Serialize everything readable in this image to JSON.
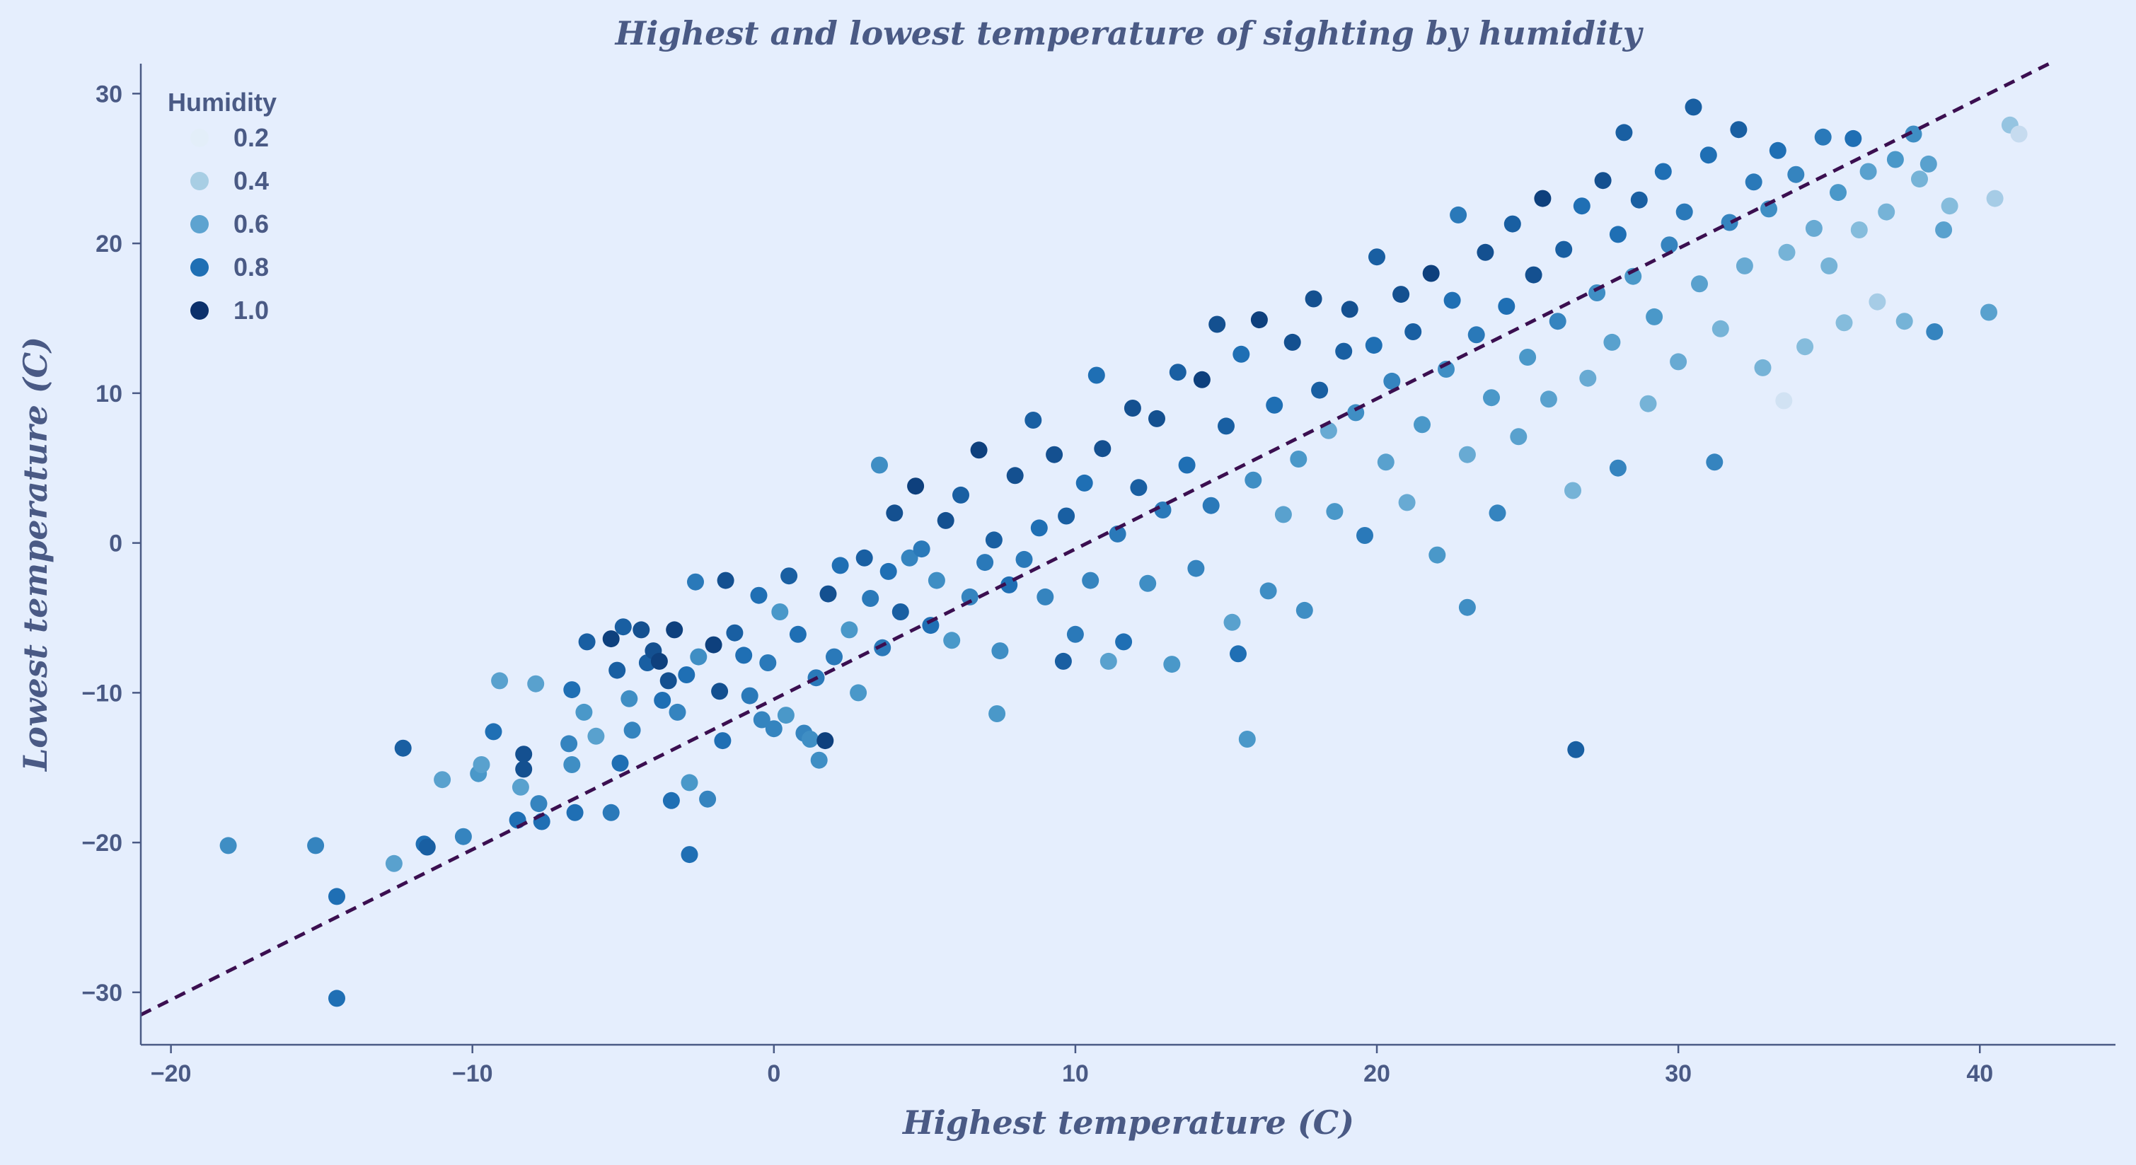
{
  "chart_data": {
    "type": "scatter",
    "title": "Highest and lowest temperature of sighting by humidity",
    "xlabel": "Highest temperature (C)",
    "ylabel": "Lowest temperature (C)",
    "xlim": [
      -21,
      44.5
    ],
    "ylim": [
      -33.5,
      32
    ],
    "xticks": [
      -20,
      -10,
      0,
      10,
      20,
      30,
      40
    ],
    "yticks": [
      -30,
      -20,
      -10,
      0,
      10,
      20,
      30
    ],
    "xtick_labels": [
      "−20",
      "−10",
      "0",
      "10",
      "20",
      "30",
      "40"
    ],
    "ytick_labels": [
      "−30",
      "−20",
      "−10",
      "0",
      "10",
      "20",
      "30"
    ],
    "grid": false,
    "legend": {
      "title": "Humidity",
      "placement": "top-left",
      "entries": [
        {
          "label": "0.2",
          "color": "#e3eef9"
        },
        {
          "label": "0.4",
          "color": "#a8cee4"
        },
        {
          "label": "0.6",
          "color": "#5da3d0"
        },
        {
          "label": "0.8",
          "color": "#1f6fb4"
        },
        {
          "label": "1.0",
          "color": "#0b306b"
        }
      ]
    },
    "reference_line": {
      "style": "dashed",
      "color": "#3b0f50",
      "points": [
        [
          -21,
          -31.5
        ],
        [
          42.3,
          32
        ]
      ]
    },
    "colormap": [
      "#f1f7fd",
      "#c6dbef",
      "#85bcdc",
      "#4a98c9",
      "#1f6fb4",
      "#08306b"
    ],
    "series": [
      {
        "points": [
          [
            -18.1,
            -20.2,
            0.65
          ],
          [
            -15.2,
            -20.2,
            0.7
          ],
          [
            -14.5,
            -23.6,
            0.8
          ],
          [
            -14.5,
            -30.4,
            0.8
          ],
          [
            -12.6,
            -21.4,
            0.55
          ],
          [
            -12.3,
            -13.7,
            0.85
          ],
          [
            -11.6,
            -20.1,
            0.8
          ],
          [
            -11.5,
            -20.3,
            0.85
          ],
          [
            -11.0,
            -15.8,
            0.55
          ],
          [
            -10.3,
            -19.6,
            0.7
          ],
          [
            -9.8,
            -15.4,
            0.6
          ],
          [
            -9.7,
            -14.8,
            0.55
          ],
          [
            -9.3,
            -12.6,
            0.8
          ],
          [
            -9.1,
            -9.2,
            0.55
          ],
          [
            -8.5,
            -18.5,
            0.8
          ],
          [
            -8.4,
            -16.3,
            0.55
          ],
          [
            -8.3,
            -14.1,
            0.9
          ],
          [
            -8.3,
            -15.1,
            0.9
          ],
          [
            -7.9,
            -9.4,
            0.55
          ],
          [
            -7.8,
            -17.4,
            0.7
          ],
          [
            -7.7,
            -18.6,
            0.8
          ],
          [
            -6.8,
            -13.4,
            0.7
          ],
          [
            -6.7,
            -14.8,
            0.65
          ],
          [
            -6.7,
            -9.8,
            0.8
          ],
          [
            -6.6,
            -18.0,
            0.8
          ],
          [
            -6.3,
            -11.3,
            0.6
          ],
          [
            -6.2,
            -6.6,
            0.85
          ],
          [
            -5.9,
            -12.9,
            0.55
          ],
          [
            -5.4,
            -18.0,
            0.75
          ],
          [
            -5.4,
            -6.4,
            0.95
          ],
          [
            -5.2,
            -8.5,
            0.85
          ],
          [
            -5.1,
            -14.7,
            0.8
          ],
          [
            -5.0,
            -5.6,
            0.85
          ],
          [
            -4.8,
            -10.4,
            0.65
          ],
          [
            -4.7,
            -12.5,
            0.7
          ],
          [
            -4.4,
            -5.8,
            0.9
          ],
          [
            -4.2,
            -8.0,
            0.85
          ],
          [
            -4.0,
            -7.2,
            0.9
          ],
          [
            -3.8,
            -7.9,
            0.95
          ],
          [
            -3.7,
            -10.5,
            0.8
          ],
          [
            -3.5,
            -9.2,
            0.9
          ],
          [
            -3.4,
            -17.2,
            0.8
          ],
          [
            -3.3,
            -5.8,
            0.95
          ],
          [
            -3.2,
            -11.3,
            0.7
          ],
          [
            -2.9,
            -8.8,
            0.8
          ],
          [
            -2.8,
            -20.8,
            0.8
          ],
          [
            -2.8,
            -16.0,
            0.6
          ],
          [
            -2.6,
            -2.6,
            0.75
          ],
          [
            -2.5,
            -7.6,
            0.65
          ],
          [
            -2.2,
            -17.1,
            0.7
          ],
          [
            -2.0,
            -6.8,
            0.95
          ],
          [
            -1.8,
            -9.9,
            0.9
          ],
          [
            -1.7,
            -13.2,
            0.8
          ],
          [
            -1.6,
            -2.5,
            0.9
          ],
          [
            -1.3,
            -6.0,
            0.85
          ],
          [
            -1.0,
            -7.5,
            0.8
          ],
          [
            -0.8,
            -10.2,
            0.75
          ],
          [
            -0.5,
            -3.5,
            0.8
          ],
          [
            -0.4,
            -11.8,
            0.7
          ],
          [
            -0.2,
            -8.0,
            0.75
          ],
          [
            0.0,
            -12.4,
            0.7
          ],
          [
            0.2,
            -4.6,
            0.6
          ],
          [
            0.4,
            -11.5,
            0.6
          ],
          [
            0.5,
            -2.2,
            0.85
          ],
          [
            0.8,
            -6.1,
            0.8
          ],
          [
            1.0,
            -12.7,
            0.7
          ],
          [
            1.2,
            -13.1,
            0.65
          ],
          [
            1.4,
            -9.0,
            0.75
          ],
          [
            1.5,
            -14.5,
            0.65
          ],
          [
            1.7,
            -13.2,
            0.95
          ],
          [
            1.8,
            -3.4,
            0.9
          ],
          [
            2.0,
            -7.6,
            0.75
          ],
          [
            2.2,
            -1.5,
            0.8
          ],
          [
            2.5,
            -5.8,
            0.6
          ],
          [
            2.8,
            -10.0,
            0.6
          ],
          [
            3.0,
            -1.0,
            0.85
          ],
          [
            3.2,
            -3.7,
            0.75
          ],
          [
            3.5,
            5.2,
            0.65
          ],
          [
            3.6,
            -7.0,
            0.75
          ],
          [
            3.8,
            -1.9,
            0.8
          ],
          [
            4.0,
            2.0,
            0.9
          ],
          [
            4.2,
            -4.6,
            0.85
          ],
          [
            4.5,
            -1.0,
            0.7
          ],
          [
            4.7,
            3.8,
            0.95
          ],
          [
            4.9,
            -0.4,
            0.75
          ],
          [
            5.2,
            -5.5,
            0.8
          ],
          [
            5.4,
            -2.5,
            0.65
          ],
          [
            5.7,
            1.5,
            0.9
          ],
          [
            5.9,
            -6.5,
            0.6
          ],
          [
            6.2,
            3.2,
            0.85
          ],
          [
            6.5,
            -3.6,
            0.7
          ],
          [
            6.8,
            6.2,
            0.95
          ],
          [
            7.0,
            -1.3,
            0.75
          ],
          [
            7.3,
            0.2,
            0.85
          ],
          [
            7.4,
            -11.4,
            0.6
          ],
          [
            7.5,
            -7.2,
            0.65
          ],
          [
            7.8,
            -2.8,
            0.8
          ],
          [
            8.0,
            4.5,
            0.9
          ],
          [
            8.3,
            -1.1,
            0.75
          ],
          [
            8.6,
            8.2,
            0.85
          ],
          [
            8.8,
            1.0,
            0.8
          ],
          [
            9.0,
            -3.6,
            0.7
          ],
          [
            9.3,
            5.9,
            0.9
          ],
          [
            9.6,
            -7.9,
            0.85
          ],
          [
            9.7,
            1.8,
            0.85
          ],
          [
            10.0,
            -6.1,
            0.75
          ],
          [
            10.3,
            4.0,
            0.8
          ],
          [
            10.5,
            -2.5,
            0.7
          ],
          [
            10.7,
            11.2,
            0.8
          ],
          [
            10.9,
            6.3,
            0.9
          ],
          [
            11.1,
            -7.9,
            0.55
          ],
          [
            11.4,
            0.6,
            0.75
          ],
          [
            11.6,
            -6.6,
            0.8
          ],
          [
            11.9,
            9.0,
            0.9
          ],
          [
            12.1,
            3.7,
            0.85
          ],
          [
            12.4,
            -2.7,
            0.65
          ],
          [
            12.7,
            8.3,
            0.9
          ],
          [
            12.9,
            2.2,
            0.75
          ],
          [
            13.2,
            -8.1,
            0.6
          ],
          [
            13.4,
            11.4,
            0.85
          ],
          [
            13.7,
            5.2,
            0.8
          ],
          [
            14.0,
            -1.7,
            0.7
          ],
          [
            14.2,
            10.9,
            0.95
          ],
          [
            14.5,
            2.5,
            0.75
          ],
          [
            14.7,
            14.6,
            0.9
          ],
          [
            15.0,
            7.8,
            0.85
          ],
          [
            15.2,
            -5.3,
            0.55
          ],
          [
            15.4,
            -7.4,
            0.8
          ],
          [
            15.5,
            12.6,
            0.8
          ],
          [
            15.7,
            -13.1,
            0.6
          ],
          [
            15.9,
            4.2,
            0.65
          ],
          [
            16.1,
            14.9,
            0.95
          ],
          [
            16.4,
            -3.2,
            0.65
          ],
          [
            16.6,
            9.2,
            0.8
          ],
          [
            16.9,
            1.9,
            0.55
          ],
          [
            17.2,
            13.4,
            0.9
          ],
          [
            17.4,
            5.6,
            0.6
          ],
          [
            17.6,
            -4.5,
            0.65
          ],
          [
            17.9,
            16.3,
            0.9
          ],
          [
            18.1,
            10.2,
            0.85
          ],
          [
            18.4,
            7.5,
            0.5
          ],
          [
            18.6,
            2.1,
            0.6
          ],
          [
            18.9,
            12.8,
            0.85
          ],
          [
            19.1,
            15.6,
            0.9
          ],
          [
            19.3,
            8.7,
            0.65
          ],
          [
            19.6,
            0.5,
            0.75
          ],
          [
            19.9,
            13.2,
            0.8
          ],
          [
            20.0,
            19.1,
            0.85
          ],
          [
            20.3,
            5.4,
            0.55
          ],
          [
            20.5,
            10.8,
            0.7
          ],
          [
            20.8,
            16.6,
            0.9
          ],
          [
            21.0,
            2.7,
            0.5
          ],
          [
            21.2,
            14.1,
            0.85
          ],
          [
            21.5,
            7.9,
            0.6
          ],
          [
            21.8,
            18.0,
            0.95
          ],
          [
            22.0,
            -0.8,
            0.6
          ],
          [
            22.3,
            11.6,
            0.65
          ],
          [
            22.5,
            16.2,
            0.8
          ],
          [
            22.7,
            21.9,
            0.75
          ],
          [
            23.0,
            -4.3,
            0.65
          ],
          [
            23.0,
            5.9,
            0.5
          ],
          [
            23.3,
            13.9,
            0.75
          ],
          [
            23.6,
            19.4,
            0.9
          ],
          [
            23.8,
            9.7,
            0.6
          ],
          [
            24.0,
            2.0,
            0.7
          ],
          [
            24.3,
            15.8,
            0.8
          ],
          [
            24.5,
            21.3,
            0.85
          ],
          [
            24.7,
            7.1,
            0.55
          ],
          [
            25.0,
            12.4,
            0.6
          ],
          [
            25.2,
            17.9,
            0.9
          ],
          [
            25.5,
            23.0,
            0.95
          ],
          [
            25.7,
            9.6,
            0.55
          ],
          [
            26.0,
            14.8,
            0.7
          ],
          [
            26.2,
            19.6,
            0.85
          ],
          [
            26.5,
            3.5,
            0.45
          ],
          [
            26.6,
            -13.8,
            0.85
          ],
          [
            26.8,
            22.5,
            0.8
          ],
          [
            27.0,
            11.0,
            0.5
          ],
          [
            27.3,
            16.7,
            0.65
          ],
          [
            27.5,
            24.2,
            0.9
          ],
          [
            27.8,
            13.4,
            0.55
          ],
          [
            28.0,
            20.6,
            0.8
          ],
          [
            28.0,
            5.0,
            0.7
          ],
          [
            28.2,
            27.4,
            0.85
          ],
          [
            28.5,
            17.8,
            0.6
          ],
          [
            28.7,
            22.9,
            0.85
          ],
          [
            29.0,
            9.3,
            0.45
          ],
          [
            29.2,
            15.1,
            0.6
          ],
          [
            29.5,
            24.8,
            0.8
          ],
          [
            29.7,
            19.9,
            0.7
          ],
          [
            30.0,
            12.1,
            0.5
          ],
          [
            30.2,
            22.1,
            0.75
          ],
          [
            30.5,
            29.1,
            0.85
          ],
          [
            30.7,
            17.3,
            0.55
          ],
          [
            31.0,
            25.9,
            0.8
          ],
          [
            31.2,
            5.4,
            0.7
          ],
          [
            31.4,
            14.3,
            0.45
          ],
          [
            31.7,
            21.4,
            0.7
          ],
          [
            32.0,
            27.6,
            0.85
          ],
          [
            32.2,
            18.5,
            0.5
          ],
          [
            32.5,
            24.1,
            0.75
          ],
          [
            32.8,
            11.7,
            0.45
          ],
          [
            33.0,
            22.3,
            0.65
          ],
          [
            33.3,
            26.2,
            0.8
          ],
          [
            33.5,
            9.5,
            0.15
          ],
          [
            33.6,
            19.4,
            0.45
          ],
          [
            33.9,
            24.6,
            0.7
          ],
          [
            34.2,
            13.1,
            0.4
          ],
          [
            34.5,
            21.0,
            0.5
          ],
          [
            34.8,
            27.1,
            0.75
          ],
          [
            35.0,
            18.5,
            0.45
          ],
          [
            35.3,
            23.4,
            0.6
          ],
          [
            35.5,
            14.7,
            0.4
          ],
          [
            35.8,
            27.0,
            0.8
          ],
          [
            36.0,
            20.9,
            0.4
          ],
          [
            36.3,
            24.8,
            0.55
          ],
          [
            36.6,
            16.1,
            0.3
          ],
          [
            36.9,
            22.1,
            0.45
          ],
          [
            37.2,
            25.6,
            0.6
          ],
          [
            37.5,
            14.8,
            0.45
          ],
          [
            37.8,
            27.3,
            0.65
          ],
          [
            38.0,
            24.3,
            0.45
          ],
          [
            38.3,
            25.3,
            0.55
          ],
          [
            38.5,
            14.1,
            0.7
          ],
          [
            38.8,
            20.9,
            0.55
          ],
          [
            39.0,
            22.5,
            0.4
          ],
          [
            40.3,
            15.4,
            0.55
          ],
          [
            40.5,
            23.0,
            0.3
          ],
          [
            41.0,
            27.9,
            0.35
          ],
          [
            41.3,
            27.3,
            0.2
          ]
        ]
      }
    ]
  }
}
